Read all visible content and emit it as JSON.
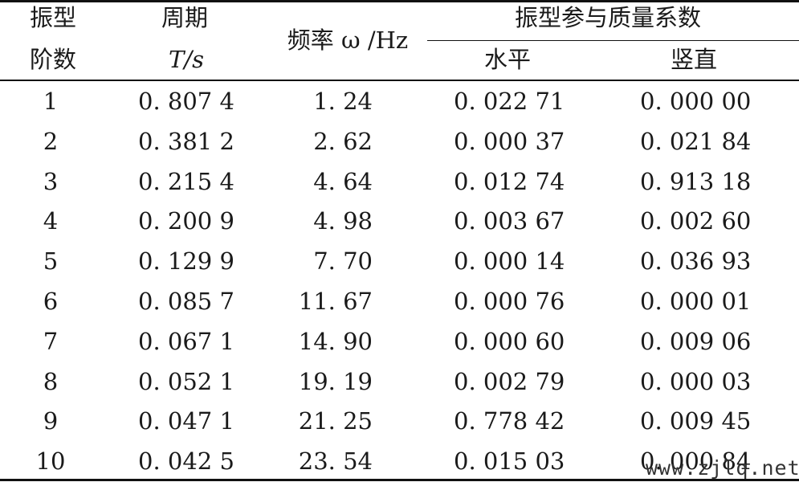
{
  "table": {
    "headers": {
      "mode_line1": "振型",
      "mode_line2": "阶数",
      "period_line1": "周期",
      "period_line2": "T/s",
      "frequency": "频率 ω /Hz",
      "participation": "振型参与质量系数",
      "horizontal": "水平",
      "vertical": "竖直"
    },
    "rows": [
      [
        "1",
        "0. 807 4",
        "1. 24",
        "0. 022 71",
        "0. 000 00"
      ],
      [
        "2",
        "0. 381 2",
        "2. 62",
        "0. 000 37",
        "0. 021 84"
      ],
      [
        "3",
        "0. 215 4",
        "4. 64",
        "0. 012 74",
        "0. 913 18"
      ],
      [
        "4",
        "0. 200 9",
        "4. 98",
        "0. 003 67",
        "0. 002 60"
      ],
      [
        "5",
        "0. 129 9",
        "7. 70",
        "0. 000 14",
        "0. 036 93"
      ],
      [
        "6",
        "0. 085 7",
        "11. 67",
        "0. 000 76",
        "0. 000 01"
      ],
      [
        "7",
        "0. 067 1",
        "14. 90",
        "0. 000 60",
        "0. 009 06"
      ],
      [
        "8",
        "0. 052 1",
        "19. 19",
        "0. 002 79",
        "0. 000 03"
      ],
      [
        "9",
        "0. 047 1",
        "21. 25",
        "0. 778 42",
        "0. 009 45"
      ],
      [
        "10",
        "0. 042 5",
        "23. 54",
        "0. 015 03",
        "0. 000 84"
      ]
    ]
  },
  "watermark": "www.zjlq.net"
}
